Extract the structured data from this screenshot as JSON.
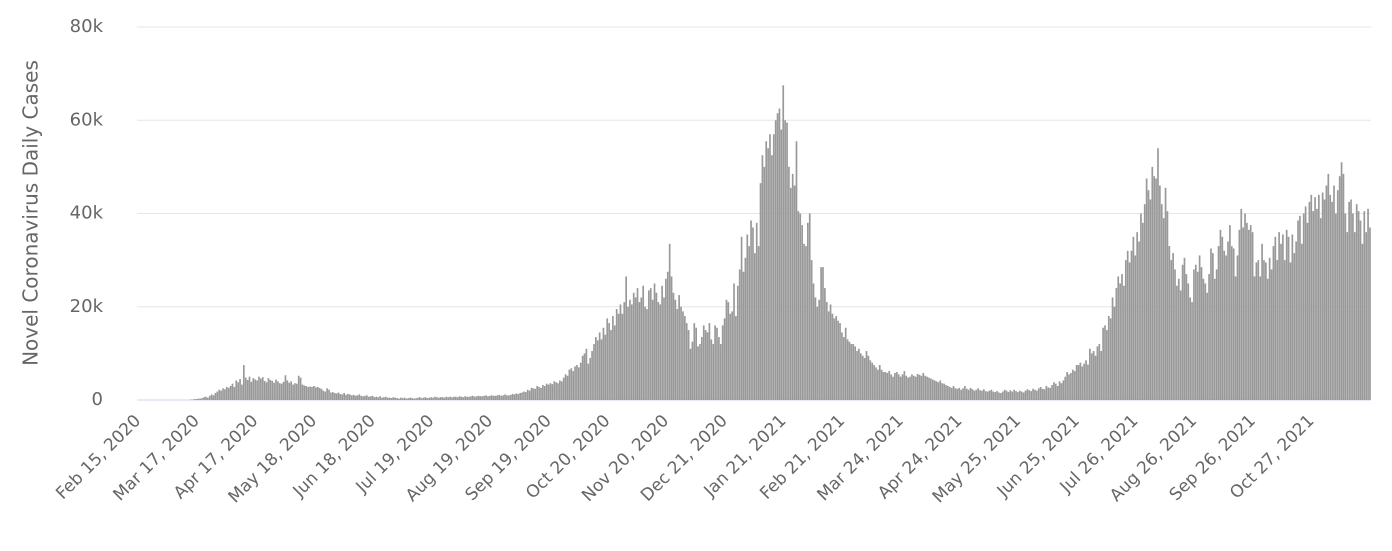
{
  "chart_data": {
    "type": "bar",
    "y_label": "Novel Coronavirus Daily Cases",
    "color": "#999999",
    "grid": true,
    "ylim": [
      0,
      80000
    ],
    "yticks": [
      0,
      {
        "value": 20000,
        "label": "20k"
      },
      {
        "value": 40000,
        "label": "40k"
      },
      {
        "value": 60000,
        "label": "60k"
      },
      {
        "value": 80000,
        "label": "80k"
      }
    ],
    "categories": [
      "Feb 15, 2020",
      null,
      null,
      null,
      null,
      null,
      null,
      null,
      null,
      null,
      null,
      null,
      null,
      null,
      null,
      null,
      null,
      null,
      null,
      null,
      null,
      null,
      null,
      null,
      null,
      null,
      null,
      null,
      null,
      null,
      null,
      "Mar 17, 2020",
      null,
      null,
      null,
      null,
      null,
      null,
      null,
      null,
      null,
      null,
      null,
      null,
      null,
      null,
      null,
      null,
      null,
      null,
      null,
      null,
      null,
      null,
      null,
      null,
      null,
      null,
      null,
      null,
      null,
      null,
      "Apr 17, 2020",
      null,
      null,
      null,
      null,
      null,
      null,
      null,
      null,
      null,
      null,
      null,
      null,
      null,
      null,
      null,
      null,
      null,
      null,
      null,
      null,
      null,
      null,
      null,
      null,
      null,
      null,
      null,
      null,
      null,
      null,
      "May 18, 2020",
      null,
      null,
      null,
      null,
      null,
      null,
      null,
      null,
      null,
      null,
      null,
      null,
      null,
      null,
      null,
      null,
      null,
      null,
      null,
      null,
      null,
      null,
      null,
      null,
      null,
      null,
      null,
      null,
      null,
      null,
      "Jun 18, 2020",
      null,
      null,
      null,
      null,
      null,
      null,
      null,
      null,
      null,
      null,
      null,
      null,
      null,
      null,
      null,
      null,
      null,
      null,
      null,
      null,
      null,
      null,
      null,
      null,
      null,
      null,
      null,
      null,
      null,
      null,
      "Jul 19, 2020",
      null,
      null,
      null,
      null,
      null,
      null,
      null,
      null,
      null,
      null,
      null,
      null,
      null,
      null,
      null,
      null,
      null,
      null,
      null,
      null,
      null,
      null,
      null,
      null,
      null,
      null,
      null,
      null,
      null,
      null,
      "Aug 19, 2020",
      null,
      null,
      null,
      null,
      null,
      null,
      null,
      null,
      null,
      null,
      null,
      null,
      null,
      null,
      null,
      null,
      null,
      null,
      null,
      null,
      null,
      null,
      null,
      null,
      null,
      null,
      null,
      null,
      null,
      null,
      "Sep 19, 2020",
      null,
      null,
      null,
      null,
      null,
      null,
      null,
      null,
      null,
      null,
      null,
      null,
      null,
      null,
      null,
      null,
      null,
      null,
      null,
      null,
      null,
      null,
      null,
      null,
      null,
      null,
      null,
      null,
      null,
      null,
      "Oct 20, 2020",
      null,
      null,
      null,
      null,
      null,
      null,
      null,
      null,
      null,
      null,
      null,
      null,
      null,
      null,
      null,
      null,
      null,
      null,
      null,
      null,
      null,
      null,
      null,
      null,
      null,
      null,
      null,
      null,
      null,
      null,
      "Nov 20, 2020",
      null,
      null,
      null,
      null,
      null,
      null,
      null,
      null,
      null,
      null,
      null,
      null,
      null,
      null,
      null,
      null,
      null,
      null,
      null,
      null,
      null,
      null,
      null,
      null,
      null,
      null,
      null,
      null,
      null,
      null,
      "Dec 21, 2020",
      null,
      null,
      null,
      null,
      null,
      null,
      null,
      null,
      null,
      null,
      null,
      null,
      null,
      null,
      null,
      null,
      null,
      null,
      null,
      null,
      null,
      null,
      null,
      null,
      null,
      null,
      null,
      null,
      null,
      null,
      "Jan 21, 2021",
      null,
      null,
      null,
      null,
      null,
      null,
      null,
      null,
      null,
      null,
      null,
      null,
      null,
      null,
      null,
      null,
      null,
      null,
      null,
      null,
      null,
      null,
      null,
      null,
      null,
      null,
      null,
      null,
      null,
      null,
      "Feb 21, 2021",
      null,
      null,
      null,
      null,
      null,
      null,
      null,
      null,
      null,
      null,
      null,
      null,
      null,
      null,
      null,
      null,
      null,
      null,
      null,
      null,
      null,
      null,
      null,
      null,
      null,
      null,
      null,
      null,
      null,
      null,
      "Mar 24, 2021",
      null,
      null,
      null,
      null,
      null,
      null,
      null,
      null,
      null,
      null,
      null,
      null,
      null,
      null,
      null,
      null,
      null,
      null,
      null,
      null,
      null,
      null,
      null,
      null,
      null,
      null,
      null,
      null,
      null,
      null,
      "Apr 24, 2021",
      null,
      null,
      null,
      null,
      null,
      null,
      null,
      null,
      null,
      null,
      null,
      null,
      null,
      null,
      null,
      null,
      null,
      null,
      null,
      null,
      null,
      null,
      null,
      null,
      null,
      null,
      null,
      null,
      null,
      null,
      "May 25, 2021",
      null,
      null,
      null,
      null,
      null,
      null,
      null,
      null,
      null,
      null,
      null,
      null,
      null,
      null,
      null,
      null,
      null,
      null,
      null,
      null,
      null,
      null,
      null,
      null,
      null,
      null,
      null,
      null,
      null,
      null,
      "Jun 25, 2021",
      null,
      null,
      null,
      null,
      null,
      null,
      null,
      null,
      null,
      null,
      null,
      null,
      null,
      null,
      null,
      null,
      null,
      null,
      null,
      null,
      null,
      null,
      null,
      null,
      null,
      null,
      null,
      null,
      null,
      null,
      "Jul 26, 2021",
      null,
      null,
      null,
      null,
      null,
      null,
      null,
      null,
      null,
      null,
      null,
      null,
      null,
      null,
      null,
      null,
      null,
      null,
      null,
      null,
      null,
      null,
      null,
      null,
      null,
      null,
      null,
      null,
      null,
      null,
      "Aug 26, 2021",
      null,
      null,
      null,
      null,
      null,
      null,
      null,
      null,
      null,
      null,
      null,
      null,
      null,
      null,
      null,
      null,
      null,
      null,
      null,
      null,
      null,
      null,
      null,
      null,
      null,
      null,
      null,
      null,
      null,
      null,
      "Sep 26, 2021",
      null,
      null,
      null,
      null,
      null,
      null,
      null,
      null,
      null,
      null,
      null,
      null,
      null,
      null,
      null,
      null,
      null,
      null,
      null,
      null,
      null,
      null,
      null,
      null,
      null,
      null,
      null,
      null,
      null,
      null,
      "Oct 27, 2021",
      null,
      null,
      null,
      null,
      null,
      null,
      null,
      null,
      null,
      null,
      null,
      null,
      null,
      null,
      null,
      null,
      null,
      null,
      null,
      null,
      null,
      null,
      null,
      null,
      null,
      null,
      null,
      null,
      null,
      null,
      null
    ],
    "values": [
      0,
      0,
      0,
      0,
      0,
      0,
      0,
      0,
      0,
      0,
      0,
      0,
      0,
      0,
      0,
      0,
      0,
      0,
      0,
      0,
      0,
      0,
      0,
      0,
      0,
      0,
      0,
      0,
      100,
      100,
      200,
      200,
      300,
      300,
      400,
      600,
      700,
      500,
      900,
      1200,
      1000,
      1500,
      1800,
      2200,
      2000,
      2500,
      2300,
      2800,
      2600,
      3000,
      3500,
      2800,
      4200,
      3800,
      4500,
      3300,
      7500,
      4800,
      4300,
      5000,
      3900,
      4700,
      4400,
      4200,
      5000,
      4600,
      4900,
      4100,
      3800,
      4700,
      4300,
      4100,
      3700,
      4400,
      4000,
      3600,
      3500,
      3900,
      5300,
      4200,
      3700,
      4000,
      3300,
      3600,
      3500,
      5200,
      4800,
      3300,
      3100,
      3000,
      2800,
      2900,
      2800,
      3000,
      2700,
      2800,
      2600,
      2400,
      2000,
      1800,
      2500,
      2200,
      1600,
      1700,
      1500,
      1400,
      1600,
      1300,
      1200,
      1500,
      1100,
      1300,
      1200,
      1000,
      1100,
      900,
      1000,
      1200,
      900,
      800,
      900,
      1000,
      700,
      800,
      900,
      600,
      700,
      600,
      800,
      500,
      600,
      700,
      500,
      500,
      400,
      600,
      500,
      400,
      300,
      500,
      400,
      500,
      300,
      400,
      500,
      400,
      300,
      400,
      500,
      600,
      400,
      500,
      600,
      400,
      500,
      600,
      500,
      700,
      600,
      500,
      600,
      600,
      500,
      700,
      600,
      700,
      600,
      700,
      700,
      600,
      800,
      700,
      600,
      800,
      700,
      700,
      800,
      900,
      700,
      800,
      900,
      800,
      800,
      900,
      1000,
      800,
      900,
      1000,
      900,
      900,
      1000,
      1100,
      900,
      1000,
      1200,
      1000,
      1000,
      1100,
      1300,
      1200,
      1400,
      1300,
      1500,
      1600,
      1800,
      1700,
      2200,
      2000,
      2600,
      2500,
      2400,
      3000,
      2800,
      2600,
      3200,
      3000,
      3500,
      3300,
      3600,
      3400,
      4000,
      3800,
      3600,
      4200,
      4000,
      4800,
      5500,
      5200,
      6500,
      6800,
      6200,
      7200,
      7500,
      7000,
      8000,
      9500,
      10000,
      11000,
      7800,
      9000,
      10500,
      12000,
      13500,
      12800,
      14500,
      13000,
      15500,
      14000,
      17500,
      16500,
      15000,
      18000,
      16000,
      19500,
      18500,
      20500,
      18500,
      21000,
      26500,
      20000,
      21500,
      20500,
      23000,
      22000,
      24000,
      21000,
      22000,
      24500,
      20000,
      19500,
      23500,
      24000,
      21500,
      25000,
      23000,
      21000,
      20500,
      24500,
      22000,
      26000,
      27500,
      33500,
      26500,
      23000,
      21500,
      19500,
      22500,
      20000,
      19000,
      18000,
      16500,
      15000,
      11000,
      12500,
      16500,
      15500,
      11500,
      12000,
      13500,
      16000,
      15000,
      14500,
      16500,
      13000,
      12000,
      16000,
      15500,
      13500,
      12000,
      16000,
      17500,
      21500,
      21000,
      18500,
      19000,
      25000,
      18000,
      24500,
      28000,
      35000,
      27500,
      30500,
      35500,
      33000,
      38500,
      37000,
      31500,
      38000,
      33000,
      46500,
      52500,
      50000,
      55500,
      54000,
      57000,
      52500,
      57000,
      60000,
      61500,
      62500,
      58000,
      67500,
      60000,
      59500,
      50000,
      45500,
      48500,
      46000,
      55500,
      40500,
      40000,
      37500,
      33500,
      33000,
      38000,
      40000,
      30000,
      25000,
      22000,
      20000,
      21500,
      28500,
      28500,
      24000,
      21000,
      19000,
      20500,
      18500,
      17500,
      18000,
      17000,
      16500,
      14500,
      13500,
      15500,
      13000,
      12500,
      12000,
      12000,
      11500,
      10500,
      11000,
      10000,
      9500,
      9000,
      10500,
      9500,
      8500,
      8000,
      7500,
      7000,
      6500,
      7500,
      6500,
      6000,
      6000,
      5800,
      6200,
      5500,
      5000,
      5800,
      6000,
      5500,
      5000,
      5500,
      6200,
      5200,
      4800,
      5000,
      5500,
      5200,
      5000,
      5600,
      5400,
      5200,
      5800,
      5200,
      5000,
      4800,
      4600,
      4400,
      4200,
      4000,
      3800,
      4200,
      3600,
      3500,
      3200,
      3000,
      2800,
      2600,
      3000,
      2500,
      2400,
      2600,
      2200,
      2500,
      3000,
      2400,
      2200,
      2600,
      2300,
      2000,
      2200,
      2500,
      2100,
      2000,
      2300,
      1900,
      1800,
      2000,
      2200,
      1800,
      1700,
      1900,
      1600,
      1500,
      1800,
      2200,
      2000,
      1700,
      2100,
      1800,
      2200,
      1900,
      1700,
      2000,
      1800,
      1600,
      2000,
      2300,
      2100,
      1900,
      2400,
      2200,
      2000,
      2500,
      2800,
      2400,
      2300,
      3000,
      2700,
      2600,
      3200,
      3800,
      3500,
      3000,
      4000,
      3600,
      4200,
      5000,
      6000,
      5500,
      5800,
      6500,
      6200,
      7500,
      7500,
      8000,
      7200,
      7800,
      8500,
      7600,
      11000,
      10000,
      10500,
      9500,
      11500,
      12000,
      10500,
      15500,
      16000,
      15000,
      18000,
      17500,
      22000,
      20000,
      24000,
      26500,
      25000,
      27000,
      24500,
      30000,
      32000,
      29500,
      32000,
      35000,
      31000,
      36000,
      34000,
      40000,
      38000,
      42000,
      47500,
      45000,
      43000,
      50000,
      48000,
      47500,
      54000,
      46000,
      42000,
      39000,
      45500,
      40500,
      33000,
      30000,
      31500,
      28000,
      24500,
      26000,
      23500,
      29000,
      30500,
      27000,
      25000,
      22000,
      21000,
      28000,
      29000,
      27500,
      31000,
      28500,
      26000,
      25000,
      23000,
      27000,
      32500,
      31500,
      26000,
      28000,
      33000,
      36500,
      35000,
      32000,
      31000,
      34000,
      37500,
      33000,
      32500,
      26500,
      31000,
      36500,
      41000,
      37000,
      40000,
      38000,
      36500,
      37500,
      36000,
      26500,
      29500,
      30000,
      26500,
      33500,
      30000,
      29500,
      26000,
      30500,
      28000,
      33000,
      35000,
      30000,
      36000,
      33500,
      35500,
      30000,
      36500,
      35000,
      29500,
      35500,
      31500,
      34000,
      38500,
      39500,
      33500,
      40000,
      41500,
      38000,
      42500,
      44000,
      40500,
      43500,
      41000,
      44000,
      39000,
      44500,
      43000,
      46000,
      48500,
      44000,
      42500,
      46000,
      40000,
      45000,
      48000,
      51000,
      48500,
      40000,
      36000,
      42500,
      43000,
      40000,
      36000,
      42000,
      40500,
      38500,
      33500,
      40500,
      36000,
      41000,
      37000
    ]
  }
}
